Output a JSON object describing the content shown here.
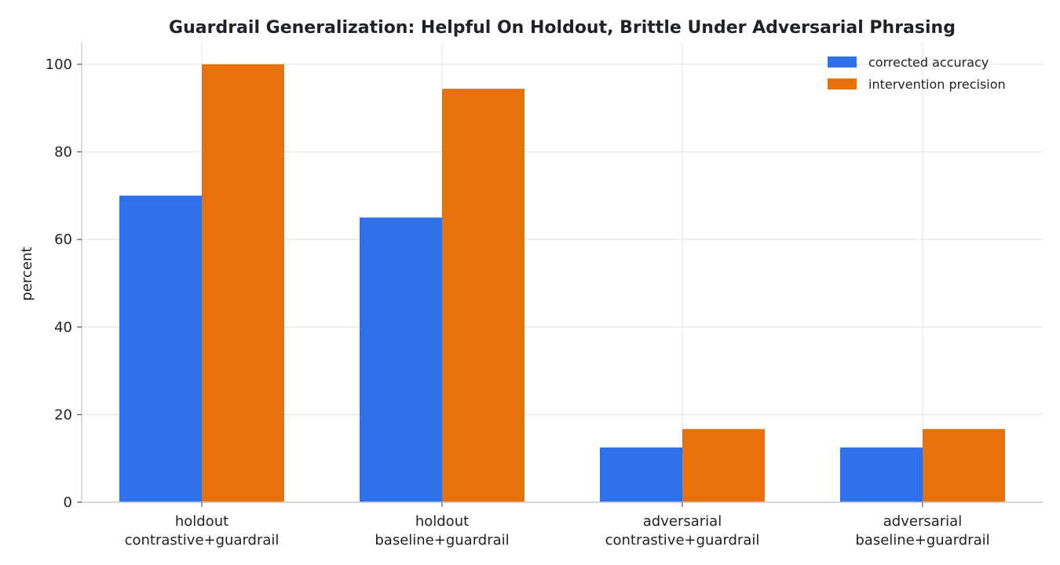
{
  "chart_data": {
    "type": "bar",
    "title": "Guardrail Generalization: Helpful On Holdout, Brittle Under Adversarial Phrasing",
    "xlabel": "",
    "ylabel": "percent",
    "ylim": [
      0,
      105
    ],
    "yticks": [
      0,
      20,
      40,
      60,
      80,
      100
    ],
    "grid": true,
    "legend_position": "top-right",
    "categories": [
      [
        "holdout",
        "contrastive+guardrail"
      ],
      [
        "holdout",
        "baseline+guardrail"
      ],
      [
        "adversarial",
        "contrastive+guardrail"
      ],
      [
        "adversarial",
        "baseline+guardrail"
      ]
    ],
    "series": [
      {
        "name": "corrected accuracy",
        "color": "#2f6fea",
        "values": [
          70,
          65,
          12.5,
          12.5
        ]
      },
      {
        "name": "intervention precision",
        "color": "#e8710a",
        "values": [
          100,
          94.4,
          16.7,
          16.7
        ]
      }
    ]
  }
}
